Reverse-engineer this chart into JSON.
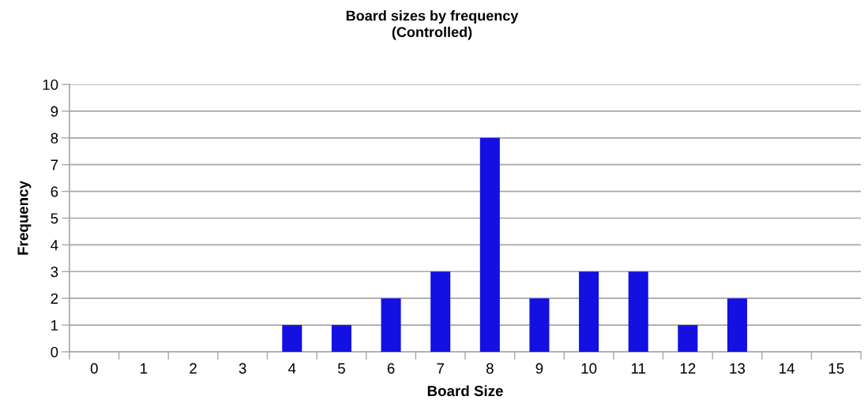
{
  "chart_data": {
    "type": "bar",
    "title": "Board sizes by frequency\n(Controlled)",
    "xlabel": "Board Size",
    "ylabel": "Frequency",
    "categories": [
      "0",
      "1",
      "2",
      "3",
      "4",
      "5",
      "6",
      "7",
      "8",
      "9",
      "10",
      "11",
      "12",
      "13",
      "14",
      "15"
    ],
    "values": [
      0,
      0,
      0,
      0,
      1,
      1,
      2,
      3,
      8,
      2,
      3,
      3,
      1,
      2,
      0,
      0
    ],
    "color": "#1410e2",
    "ylim": [
      0,
      10
    ],
    "yticks": [
      0,
      1,
      2,
      3,
      4,
      5,
      6,
      7,
      8,
      9,
      10
    ],
    "grid": "y"
  }
}
